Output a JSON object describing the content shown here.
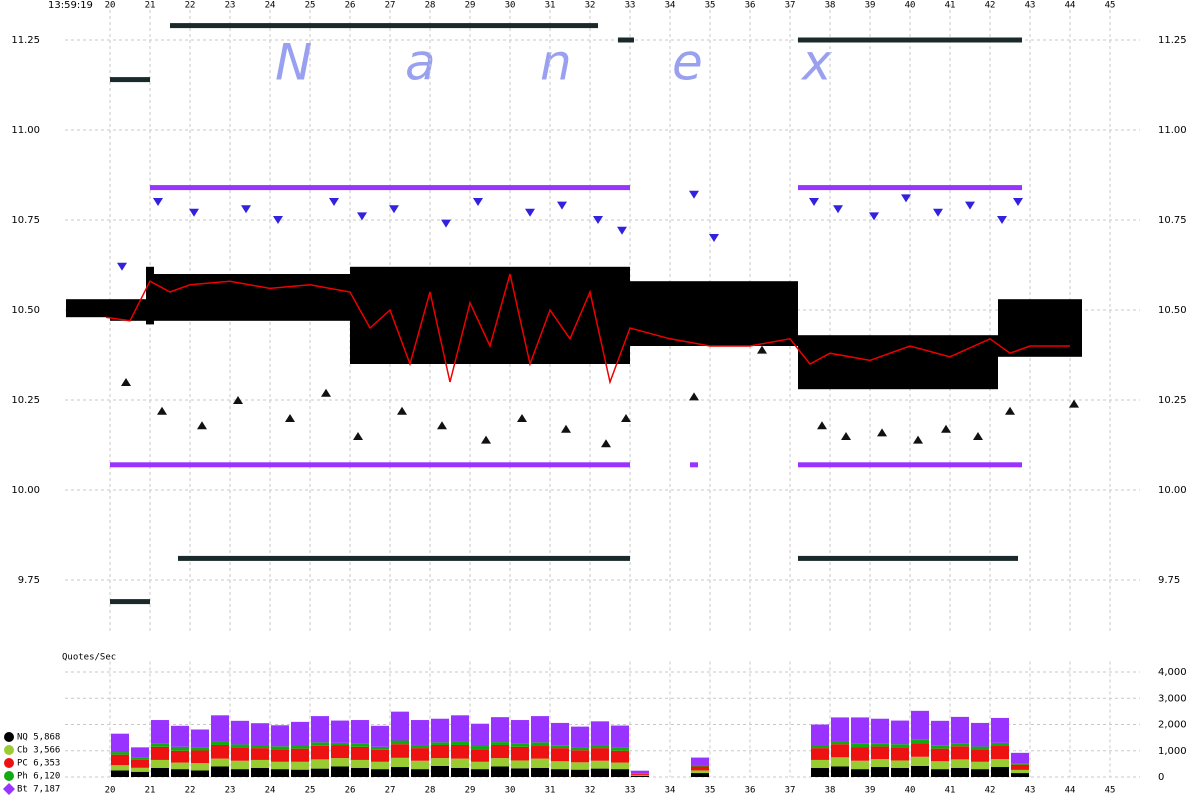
{
  "timestamp": "13:59:19",
  "watermark_letters": [
    "N",
    "a",
    "n",
    "e",
    "x"
  ],
  "chart_data": [
    {
      "type": "range",
      "xlim": [
        18.875,
        45.75
      ],
      "ylim": [
        9.6,
        11.35
      ],
      "xticks": [
        20,
        21,
        22,
        23,
        24,
        25,
        26,
        27,
        28,
        29,
        30,
        31,
        32,
        33,
        34,
        35,
        36,
        37,
        38,
        39,
        40,
        41,
        42,
        43,
        44,
        45
      ],
      "yticks": [
        11.25,
        {
          "value": 11,
          "label": "11.00"
        },
        10.75,
        {
          "value": 10.5,
          "label": "10.50"
        },
        10.25,
        {
          "value": 10,
          "label": "10.00"
        },
        9.75
      ],
      "grid": true,
      "levels": {
        "x_start": [
          21,
          37.2,
          20,
          21,
          34.5,
          37.2,
          21.5,
          32.7,
          37.2,
          20,
          21.7,
          37.2,
          20
        ],
        "x_end": [
          33,
          42.8,
          21,
          33,
          34.7,
          42.8,
          32.2,
          33.1,
          42.8,
          21,
          33,
          42.7,
          21
        ],
        "values": [
          10.84,
          10.84,
          10.07,
          10.07,
          10.07,
          10.07,
          11.29,
          11.25,
          11.25,
          11.14,
          9.81,
          9.81,
          9.69
        ],
        "colors": [
          "#9933ff",
          "#9933ff",
          "#9933ff",
          "#9933ff",
          "#9933ff",
          "#9933ff",
          "#1a2a2a",
          "#1a2a2a",
          "#1a2a2a",
          "#1a2a2a",
          "#1a2a2a",
          "#1a2a2a",
          "#1a2a2a"
        ]
      },
      "nbbo": {
        "color": "#000000",
        "x_start": [
          18.9,
          20,
          20.9,
          21.1,
          26,
          33,
          37.2,
          42.2
        ],
        "x_end": [
          20,
          20.9,
          21.1,
          26,
          33,
          37.2,
          42.2,
          44.3
        ],
        "bid": [
          10.48,
          10.47,
          10.46,
          10.47,
          10.35,
          10.4,
          10.28,
          10.37
        ],
        "ask": [
          10.53,
          10.53,
          10.62,
          10.6,
          10.62,
          10.58,
          10.43,
          10.53
        ]
      },
      "series": [
        {
          "color": "#3322dd",
          "marker": "down",
          "x": [
            20.3,
            21.2,
            22.1,
            23.4,
            24.2,
            25.6,
            26.3,
            27.1,
            28.4,
            29.2,
            30.5,
            31.3,
            32.2,
            32.8,
            34.6,
            35.1,
            37.6,
            38.2,
            39.1,
            39.9,
            40.7,
            41.5,
            42.3,
            42.7
          ],
          "values": [
            10.62,
            10.8,
            10.77,
            10.78,
            10.75,
            10.8,
            10.76,
            10.78,
            10.74,
            10.8,
            10.77,
            10.79,
            10.75,
            10.72,
            10.82,
            10.7,
            10.8,
            10.78,
            10.76,
            10.81,
            10.77,
            10.79,
            10.75,
            10.8
          ]
        },
        {
          "color": "#111111",
          "marker": "up",
          "x": [
            20.4,
            21.3,
            22.3,
            23.2,
            24.5,
            25.4,
            26.2,
            27.3,
            28.3,
            29.4,
            30.3,
            31.4,
            32.4,
            32.9,
            34.6,
            36.3,
            37.8,
            38.4,
            39.3,
            40.2,
            40.9,
            41.7,
            42.5,
            44.1
          ],
          "values": [
            10.3,
            10.22,
            10.18,
            10.25,
            10.2,
            10.27,
            10.15,
            10.22,
            10.18,
            10.14,
            10.2,
            10.17,
            10.13,
            10.2,
            10.26,
            10.39,
            10.18,
            10.15,
            10.16,
            10.14,
            10.17,
            10.15,
            10.22,
            10.24
          ]
        },
        {
          "color": "#ee0000",
          "marker": "line",
          "x": [
            19.9,
            20.5,
            21,
            21.5,
            22,
            23,
            24,
            25,
            26,
            26.5,
            27,
            27.5,
            28,
            28.5,
            29,
            29.5,
            30,
            30.5,
            31,
            31.5,
            32,
            32.5,
            33,
            34,
            35,
            36,
            37,
            37.5,
            38,
            39,
            40,
            41,
            42,
            42.5,
            43,
            44
          ],
          "values": [
            10.48,
            10.47,
            10.58,
            10.55,
            10.57,
            10.58,
            10.56,
            10.57,
            10.55,
            10.45,
            10.5,
            10.35,
            10.55,
            10.3,
            10.52,
            10.4,
            10.6,
            10.35,
            10.5,
            10.42,
            10.55,
            10.3,
            10.45,
            10.42,
            10.4,
            10.4,
            10.42,
            10.35,
            10.38,
            10.36,
            10.4,
            10.37,
            10.42,
            10.38,
            10.4,
            10.4
          ]
        }
      ]
    },
    {
      "type": "bar",
      "stacked": true,
      "y_label": "Quotes/Sec",
      "xlim": [
        18.875,
        45.75
      ],
      "ylim": [
        0,
        4400
      ],
      "xticks": [
        20,
        21,
        22,
        23,
        24,
        25,
        26,
        27,
        28,
        29,
        30,
        31,
        32,
        33,
        34,
        35,
        36,
        37,
        38,
        39,
        40,
        41,
        42,
        43,
        44,
        45
      ],
      "yticks": [
        0,
        {
          "value": 1000,
          "label": "1,000"
        },
        {
          "value": 2000,
          "label": "2,000"
        },
        {
          "value": 3000,
          "label": "3,000"
        },
        {
          "value": 4000,
          "label": "4,000"
        }
      ],
      "grid": true,
      "bar_width": 0.5,
      "x": [
        20,
        20.5,
        21,
        21.5,
        22,
        22.5,
        23,
        23.5,
        24,
        24.5,
        25,
        25.5,
        26,
        26.5,
        27,
        27.5,
        28,
        28.5,
        29,
        29.5,
        30,
        30.5,
        31,
        31.5,
        32,
        32.5,
        33,
        33.5,
        34,
        34.5,
        35,
        35.5,
        36,
        36.5,
        37,
        37.5,
        38,
        38.5,
        39,
        39.5,
        40,
        40.5,
        41,
        41.5,
        42,
        42.5,
        43,
        43.5
      ],
      "series": [
        {
          "name": "NQ 5,868",
          "color": "#000000",
          "marker": "circle",
          "values": [
            250,
            200,
            350,
            300,
            250,
            400,
            300,
            350,
            300,
            280,
            320,
            400,
            350,
            300,
            380,
            300,
            420,
            350,
            300,
            400,
            330,
            350,
            300,
            280,
            320,
            300,
            50,
            0,
            0,
            150,
            0,
            0,
            0,
            0,
            0,
            350,
            400,
            300,
            380,
            350,
            420,
            300,
            350,
            300,
            380,
            150,
            0,
            0
          ]
        },
        {
          "name": "Cb 3,566",
          "color": "#99cc33",
          "marker": "circle",
          "values": [
            200,
            150,
            300,
            250,
            280,
            300,
            320,
            300,
            280,
            300,
            350,
            320,
            300,
            280,
            350,
            320,
            300,
            350,
            280,
            320,
            300,
            350,
            300,
            280,
            300,
            250,
            30,
            0,
            0,
            100,
            0,
            0,
            0,
            0,
            0,
            300,
            350,
            320,
            300,
            280,
            350,
            300,
            320,
            280,
            300,
            120,
            0,
            0
          ]
        },
        {
          "name": "PC 6,353",
          "color": "#ee1111",
          "marker": "circle",
          "values": [
            400,
            300,
            500,
            450,
            480,
            520,
            500,
            450,
            480,
            500,
            520,
            480,
            500,
            460,
            520,
            480,
            500,
            520,
            480,
            500,
            520,
            480,
            500,
            460,
            480,
            450,
            50,
            0,
            0,
            150,
            0,
            0,
            0,
            0,
            0,
            450,
            500,
            520,
            480,
            500,
            520,
            480,
            500,
            480,
            500,
            200,
            0,
            0
          ]
        },
        {
          "name": "Ph 6,120",
          "color": "#11aa11",
          "marker": "circle",
          "values": [
            100,
            80,
            120,
            150,
            100,
            130,
            120,
            100,
            110,
            120,
            130,
            100,
            120,
            110,
            140,
            120,
            100,
            130,
            120,
            110,
            120,
            140,
            110,
            100,
            120,
            110,
            10,
            0,
            0,
            40,
            0,
            0,
            0,
            0,
            0,
            100,
            120,
            130,
            110,
            120,
            130,
            110,
            120,
            100,
            120,
            50,
            0,
            0
          ]
        },
        {
          "name": "Bt 7,187",
          "color": "#9933ff",
          "marker": "diamond",
          "values": [
            700,
            400,
            900,
            800,
            700,
            1000,
            900,
            850,
            800,
            900,
            1000,
            850,
            900,
            800,
            1100,
            950,
            900,
            1000,
            850,
            950,
            900,
            1000,
            850,
            800,
            900,
            850,
            100,
            0,
            0,
            300,
            0,
            0,
            0,
            0,
            0,
            800,
            900,
            1000,
            950,
            900,
            1100,
            950,
            1000,
            900,
            950,
            400,
            0,
            0
          ]
        }
      ]
    }
  ]
}
